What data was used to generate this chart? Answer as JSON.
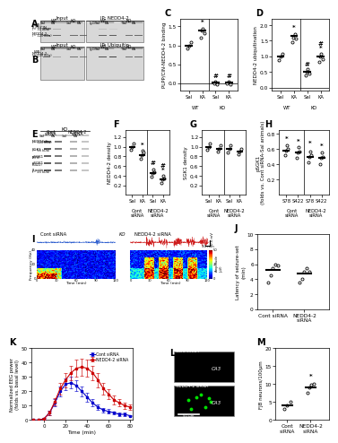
{
  "panel_C": {
    "groups": [
      "Sal",
      "KA",
      "Sal",
      "KA"
    ],
    "means": [
      1.0,
      1.4,
      0.02,
      0.02
    ],
    "scatter_data": [
      [
        0.92,
        1.0,
        1.08
      ],
      [
        1.2,
        1.38,
        1.45,
        1.32
      ],
      [
        0.0,
        0.03,
        -0.02
      ],
      [
        0.0,
        0.03,
        -0.02
      ]
    ],
    "ylabel": "PLPP/CIN-NEDD4-2 binding",
    "xlabel_groups": [
      "WT",
      "KO"
    ],
    "title": "C",
    "ylim": [
      -0.2,
      1.7
    ],
    "yticks": [
      0.0,
      0.5,
      1.0,
      1.5
    ],
    "star_positions": [
      [
        1,
        1.55,
        "*"
      ],
      [
        2,
        0.12,
        "#"
      ],
      [
        3,
        0.12,
        "#"
      ]
    ]
  },
  "panel_D": {
    "groups": [
      "Sal",
      "KA",
      "Sal",
      "KA"
    ],
    "means": [
      1.0,
      1.65,
      0.5,
      1.0
    ],
    "scatter_data": [
      [
        0.88,
        1.0,
        1.08
      ],
      [
        1.45,
        1.6,
        1.72,
        1.58
      ],
      [
        0.38,
        0.5,
        0.58,
        0.44
      ],
      [
        0.82,
        1.0,
        1.08,
        0.9
      ]
    ],
    "ylabel": "NEDD4-2 ubiquitination",
    "xlabel_groups": [
      "WT",
      "KO"
    ],
    "title": "D",
    "ylim": [
      -0.1,
      2.2
    ],
    "yticks": [
      0.0,
      0.5,
      1.0,
      1.5,
      2.0
    ],
    "star_positions": [
      [
        1,
        1.85,
        "*"
      ],
      [
        2,
        0.68,
        "#"
      ],
      [
        3,
        1.18,
        "*"
      ],
      [
        3,
        1.33,
        "#"
      ]
    ]
  },
  "panel_F": {
    "groups": [
      "Sal",
      "KA",
      "Sal",
      "KA"
    ],
    "means": [
      1.0,
      0.82,
      0.45,
      0.32
    ],
    "scatter_data": [
      [
        0.93,
        1.0,
        1.07
      ],
      [
        0.75,
        0.82,
        0.92,
        0.88
      ],
      [
        0.38,
        0.45,
        0.53,
        0.48
      ],
      [
        0.25,
        0.32,
        0.4,
        0.35
      ]
    ],
    "ylabel": "NEDD4-2 density",
    "xlabel_groups": [
      "Cont\nsiRNA",
      "NEDD4-2\nsiRNA"
    ],
    "title": "F",
    "ylim": [
      0.0,
      1.35
    ],
    "yticks": [
      0.2,
      0.4,
      0.6,
      0.8,
      1.0,
      1.2
    ],
    "star_positions": [
      [
        1,
        0.98,
        "*"
      ],
      [
        2,
        0.61,
        "#"
      ],
      [
        3,
        0.47,
        "*"
      ],
      [
        3,
        0.55,
        "#"
      ]
    ]
  },
  "panel_G": {
    "groups": [
      "Sal",
      "KA",
      "Sal",
      "KA"
    ],
    "means": [
      1.0,
      0.95,
      0.95,
      0.9
    ],
    "scatter_data": [
      [
        0.93,
        1.0,
        1.07
      ],
      [
        0.9,
        0.95,
        1.02
      ],
      [
        0.88,
        0.95,
        1.02
      ],
      [
        0.84,
        0.9,
        0.96
      ]
    ],
    "ylabel": "SGK1 density",
    "xlabel_groups": [
      "Cont\nsiRNA",
      "NEDD4-2\nsiRNA"
    ],
    "title": "G",
    "ylim": [
      0.0,
      1.35
    ],
    "yticks": [
      0.2,
      0.4,
      0.6,
      0.8,
      1.0,
      1.2
    ]
  },
  "panel_H": {
    "groups": [
      "S78",
      "S422",
      "S78",
      "S422"
    ],
    "means": [
      0.58,
      0.55,
      0.5,
      0.48
    ],
    "scatter_data": [
      [
        0.52,
        0.58,
        0.65,
        0.6
      ],
      [
        0.48,
        0.55,
        0.62,
        0.57
      ],
      [
        0.43,
        0.5,
        0.57,
        0.52
      ],
      [
        0.4,
        0.48,
        0.55,
        0.5
      ]
    ],
    "ylabel": "pSGK1\n(folds vs. Cont siRNA-Sal animals)",
    "xlabel_groups": [
      "Cont\nsiRNA",
      "NEDD4-2\nsiRNA"
    ],
    "title": "H",
    "ylim": [
      0.0,
      0.85
    ],
    "yticks": [
      0.2,
      0.4,
      0.6,
      0.8
    ],
    "star_positions": [
      [
        0,
        0.7,
        "*"
      ],
      [
        1,
        0.67,
        "*"
      ],
      [
        2,
        0.64,
        "*"
      ],
      [
        3,
        0.61,
        "*"
      ]
    ]
  },
  "panel_J": {
    "groups": [
      "Cont siRNA",
      "NEDD4-2\nsiRNA"
    ],
    "means": [
      5.2,
      4.7
    ],
    "scatter_data": [
      [
        3.5,
        4.5,
        5.5,
        6.0,
        5.8
      ],
      [
        3.5,
        4.0,
        5.0,
        5.5,
        5.0
      ]
    ],
    "ylabel": "Latency of seizure-set\n(min)",
    "title": "J",
    "ylim": [
      0,
      10
    ],
    "yticks": [
      0,
      2,
      4,
      6,
      8,
      10
    ]
  },
  "panel_K": {
    "time": [
      -10,
      -5,
      0,
      5,
      10,
      15,
      20,
      25,
      30,
      35,
      40,
      45,
      50,
      55,
      60,
      65,
      70,
      75,
      80
    ],
    "cont_mean": [
      0,
      0,
      1,
      5,
      12,
      20,
      25,
      26,
      24,
      20,
      16,
      12,
      9,
      7,
      6,
      5,
      4,
      4,
      3
    ],
    "cont_sem": [
      0,
      0,
      0.5,
      1.5,
      2.5,
      3.5,
      4,
      4,
      4,
      3.5,
      3,
      2.5,
      2,
      1.5,
      1.5,
      1,
      1,
      1,
      0.5
    ],
    "nedd4_mean": [
      0,
      0,
      1,
      5,
      13,
      22,
      28,
      33,
      36,
      37,
      36,
      33,
      28,
      22,
      18,
      14,
      12,
      10,
      9
    ],
    "nedd4_sem": [
      0,
      0,
      0.5,
      1.5,
      2.5,
      4,
      5,
      5,
      6,
      6,
      6,
      5,
      5,
      4,
      3.5,
      3,
      2.5,
      2,
      2
    ],
    "ylabel": "Normalized EEG power\n(folds vs. basal level)",
    "xlabel": "Time (min)",
    "title": "K",
    "ylim": [
      0,
      50
    ],
    "yticks": [
      0,
      10,
      20,
      30,
      40,
      50
    ],
    "cont_color": "#0000CC",
    "nedd4_color": "#CC0000"
  },
  "panel_M": {
    "groups": [
      "Cont\nsiRNA",
      "NEDD4-2\nsiRNA"
    ],
    "means": [
      4.0,
      9.0
    ],
    "scatter_data": [
      [
        3.0,
        4.0,
        5.0
      ],
      [
        7.5,
        9.0,
        9.8,
        10.2
      ]
    ],
    "ylabel": "FJB neurons/100μm",
    "title": "M",
    "ylim": [
      0,
      20
    ],
    "yticks": [
      0,
      5,
      10,
      15,
      20
    ],
    "star_positions": [
      [
        1,
        11.5,
        "*"
      ]
    ]
  },
  "bg_color": "#ffffff"
}
